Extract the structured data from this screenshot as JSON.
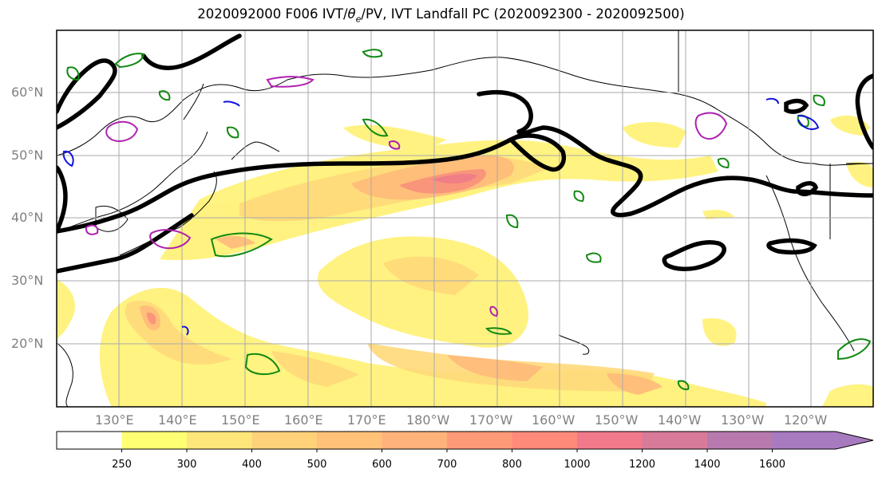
{
  "title": "2020092000 F006 IVT/θ_e/PV, IVT Landfall PC (2020092300 - 2020092500)",
  "title_parts": {
    "before": "2020092000 F006 IVT/",
    "theta": "θ",
    "sub": "e",
    "after": "/PV, IVT Landfall PC (2020092300 - 2020092500)"
  },
  "map": {
    "lat_labels": [
      "60°N",
      "50°N",
      "40°N",
      "30°N",
      "20°N"
    ],
    "lon_labels": [
      "130°E",
      "140°E",
      "150°E",
      "160°E",
      "170°E",
      "180°W",
      "170°W",
      "160°W",
      "150°W",
      "140°W",
      "130°W",
      "120°W"
    ]
  },
  "colorbar": {
    "ticks": [
      "250",
      "300",
      "400",
      "500",
      "600",
      "700",
      "800",
      "1000",
      "1200",
      "1400",
      "1600"
    ],
    "colors": [
      "#ffffff",
      "#ffff73",
      "#ffe67a",
      "#ffd27a",
      "#ffc278",
      "#ffb27a",
      "#ff9a78",
      "#ff8a7a",
      "#f07a8a",
      "#d87a9a",
      "#b87aae",
      "#a87ac0"
    ]
  }
}
